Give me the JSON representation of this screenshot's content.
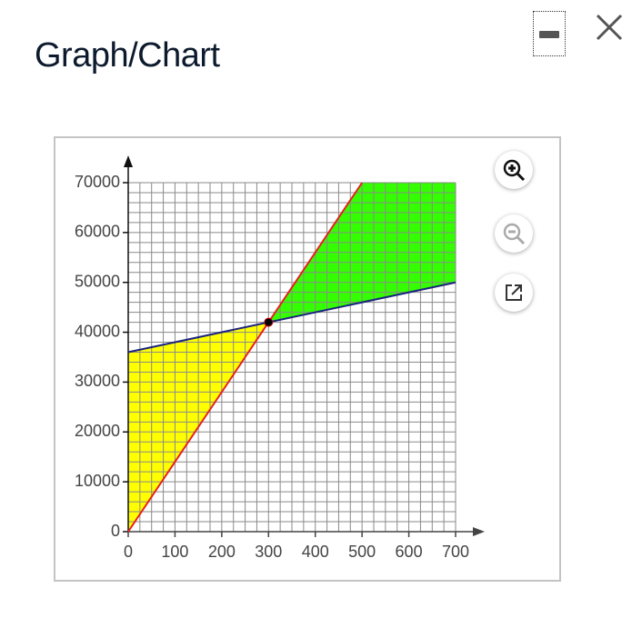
{
  "header": {
    "title": "Graph/Chart"
  },
  "chart_data": {
    "type": "line",
    "xlim": [
      0,
      700
    ],
    "ylim": [
      0,
      70000
    ],
    "xticks": [
      0,
      100,
      200,
      300,
      400,
      500,
      600,
      700
    ],
    "yticks": [
      0,
      10000,
      20000,
      30000,
      40000,
      50000,
      60000,
      70000
    ],
    "grid": true,
    "minor_grid": {
      "x": 25,
      "y": 2000
    },
    "regions": [
      {
        "color": "#ffff00",
        "x": [
          0,
          0,
          300
        ],
        "values": [
          0,
          36000,
          42000
        ]
      },
      {
        "color": "#33ff00",
        "x": [
          300,
          500,
          700,
          700
        ],
        "values": [
          42000,
          70000,
          70000,
          50000
        ]
      }
    ],
    "series": [
      {
        "color": "#e8201e",
        "x": [
          0,
          500
        ],
        "values": [
          0,
          70000
        ]
      },
      {
        "color": "#1a237e",
        "x": [
          0,
          700
        ],
        "values": [
          36000,
          50000
        ]
      }
    ],
    "points": [
      {
        "x": 300,
        "y": 42000,
        "color": "#000000"
      }
    ]
  }
}
